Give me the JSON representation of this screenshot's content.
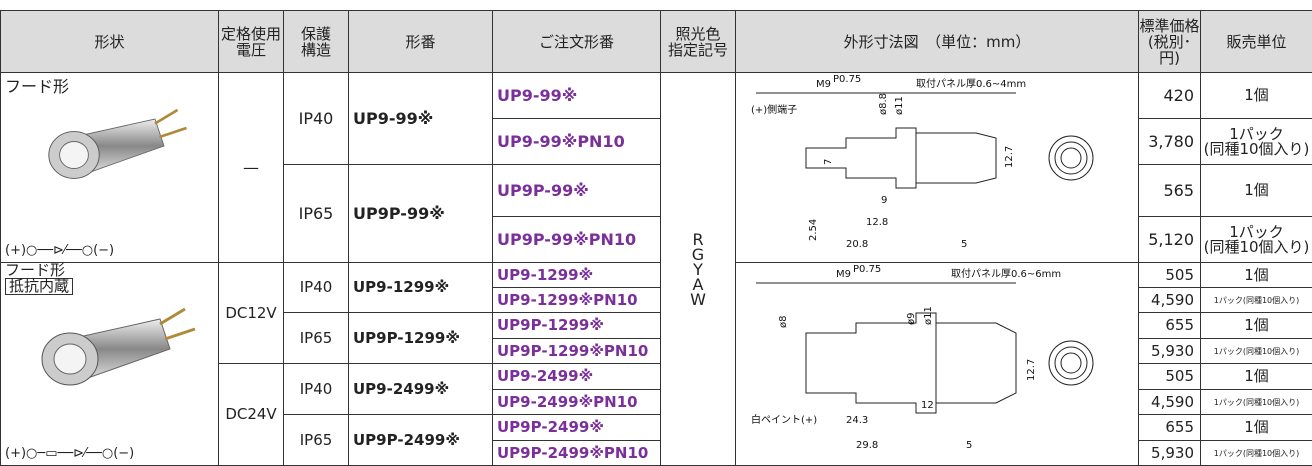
{
  "header": {
    "columns": [
      "形状",
      "定格使用\n電圧",
      "保護\n構造",
      "形番",
      "ご注文形番",
      "照光色\n指定記号",
      "外形寸法図　（単位：mm）",
      "標準価格\n(税別･円)",
      "販売単位"
    ]
  },
  "color_codes": "R\nG\nY\nA\nW",
  "sections": [
    {
      "shape": "フード形",
      "circuit": "(+)○──⊳⁄──○(−)",
      "drawing": {
        "thread": "M9",
        "pitch": "P0.75",
        "panel": "取付パネル厚0.6~4mm",
        "labels": [
          "(+)側端子",
          "ø8.8",
          "ø11",
          "7",
          "12.7",
          "9",
          "12.8",
          "2.54",
          "20.8",
          "5"
        ]
      },
      "voltages": [
        {
          "voltage": "—",
          "groups": [
            {
              "protection": "IP40",
              "model": "UP9-99※",
              "orders": [
                {
                  "code": "UP9-99※",
                  "price": "420",
                  "unit": "1個"
                },
                {
                  "code": "UP9-99※PN10",
                  "price": "3,780",
                  "unit": "1パック\n(同種10個入り)"
                }
              ]
            },
            {
              "protection": "IP65",
              "model": "UP9P-99※",
              "orders": [
                {
                  "code": "UP9P-99※",
                  "price": "565",
                  "unit": "1個"
                },
                {
                  "code": "UP9P-99※PN10",
                  "price": "5,120",
                  "unit": "1パック\n(同種10個入り)"
                }
              ]
            }
          ]
        }
      ]
    },
    {
      "shape": "フード形",
      "badge": "抵抗内蔵",
      "circuit": "(+)○─▭──⊳⁄──○(−)",
      "drawing": {
        "thread": "M9",
        "pitch": "P0.75",
        "panel": "取付パネル厚0.6~6mm",
        "labels": [
          "ø8",
          "ø9",
          "ø11",
          "12.7",
          "12",
          "白ペイント(+)",
          "24.3",
          "29.8",
          "5"
        ]
      },
      "voltages": [
        {
          "voltage": "DC12V",
          "groups": [
            {
              "protection": "IP40",
              "model": "UP9-1299※",
              "orders": [
                {
                  "code": "UP9-1299※",
                  "price": "505",
                  "unit": "1個"
                },
                {
                  "code": "UP9-1299※PN10",
                  "price": "4,590",
                  "unit": "1パック(同種10個入り)"
                }
              ]
            },
            {
              "protection": "IP65",
              "model": "UP9P-1299※",
              "orders": [
                {
                  "code": "UP9P-1299※",
                  "price": "655",
                  "unit": "1個"
                },
                {
                  "code": "UP9P-1299※PN10",
                  "price": "5,930",
                  "unit": "1パック(同種10個入り)"
                }
              ]
            }
          ]
        },
        {
          "voltage": "DC24V",
          "groups": [
            {
              "protection": "IP40",
              "model": "UP9-2499※",
              "orders": [
                {
                  "code": "UP9-2499※",
                  "price": "505",
                  "unit": "1個"
                },
                {
                  "code": "UP9-2499※PN10",
                  "price": "4,590",
                  "unit": "1パック(同種10個入り)"
                }
              ]
            },
            {
              "protection": "IP65",
              "model": "UP9P-2499※",
              "orders": [
                {
                  "code": "UP9P-2499※",
                  "price": "655",
                  "unit": "1個"
                },
                {
                  "code": "UP9P-2499※PN10",
                  "price": "5,930",
                  "unit": "1パック(同種10個入り)"
                }
              ]
            }
          ]
        }
      ]
    }
  ]
}
